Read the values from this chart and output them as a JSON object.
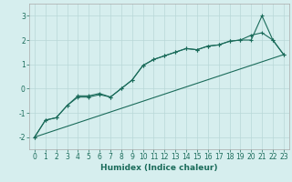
{
  "title": "",
  "xlabel": "Humidex (Indice chaleur)",
  "background_color": "#d6eeee",
  "grid_color": "#b8d8d8",
  "line_color": "#1a6b5a",
  "xlim": [
    -0.5,
    23.5
  ],
  "ylim": [
    -2.5,
    3.5
  ],
  "yticks": [
    -2,
    -1,
    0,
    1,
    2,
    3
  ],
  "xticks": [
    0,
    1,
    2,
    3,
    4,
    5,
    6,
    7,
    8,
    9,
    10,
    11,
    12,
    13,
    14,
    15,
    16,
    17,
    18,
    19,
    20,
    21,
    22,
    23
  ],
  "line1_x": [
    0,
    1,
    2,
    3,
    4,
    5,
    6,
    7,
    8,
    9,
    10,
    11,
    12,
    13,
    14,
    15,
    16,
    17,
    18,
    19,
    20,
    21,
    22,
    23
  ],
  "line1_y": [
    -2.0,
    -1.3,
    -1.2,
    -0.7,
    -0.35,
    -0.35,
    -0.25,
    -0.35,
    0.0,
    0.35,
    0.95,
    1.2,
    1.35,
    1.5,
    1.65,
    1.6,
    1.75,
    1.8,
    1.95,
    2.0,
    2.0,
    3.0,
    2.0,
    1.4
  ],
  "line2_x": [
    0,
    1,
    2,
    3,
    4,
    5,
    6,
    7,
    8,
    9,
    10,
    11,
    12,
    13,
    14,
    15,
    16,
    17,
    18,
    19,
    20,
    21,
    22,
    23
  ],
  "line2_y": [
    -2.0,
    -1.3,
    -1.2,
    -0.7,
    -0.3,
    -0.3,
    -0.2,
    -0.35,
    0.0,
    0.35,
    0.95,
    1.2,
    1.35,
    1.5,
    1.65,
    1.6,
    1.75,
    1.8,
    1.95,
    2.0,
    2.2,
    2.3,
    2.0,
    1.4
  ],
  "line3_x": [
    0,
    23
  ],
  "line3_y": [
    -2.0,
    1.4
  ],
  "tick_fontsize": 5.5,
  "xlabel_fontsize": 6.5,
  "linewidth": 0.8,
  "markersize": 3.5,
  "grid_linewidth": 0.5
}
